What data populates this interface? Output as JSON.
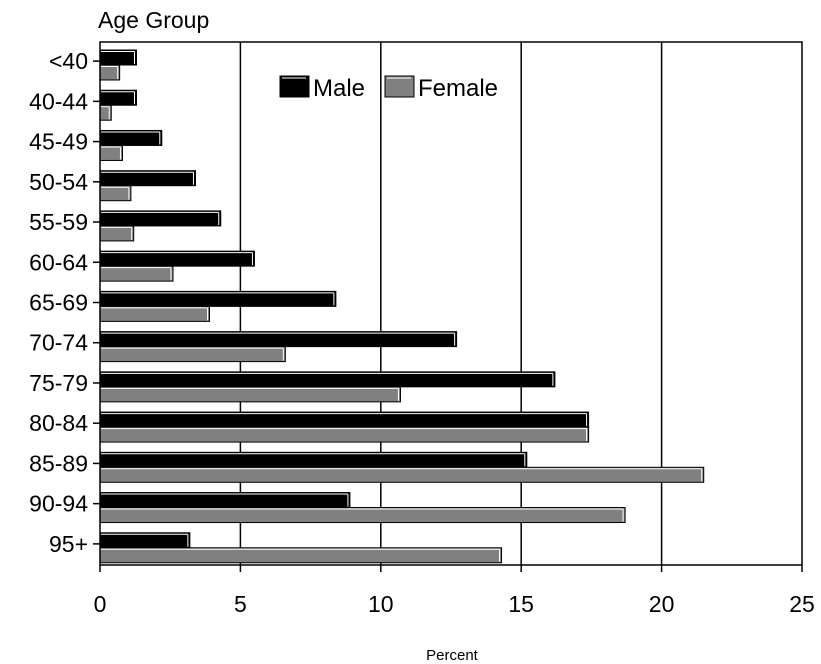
{
  "chart_data": {
    "type": "bar",
    "orientation": "horizontal",
    "title": "Age Group",
    "xlabel": "Percent",
    "ylabel": "",
    "xlim": [
      0,
      25
    ],
    "xticks": [
      0,
      5,
      10,
      15,
      20,
      25
    ],
    "grid": "vertical",
    "legend_position": "top-right",
    "categories": [
      "<40",
      "40-44",
      "45-49",
      "50-54",
      "55-59",
      "60-64",
      "65-69",
      "70-74",
      "75-79",
      "80-84",
      "85-89",
      "90-94",
      "95+"
    ],
    "series": [
      {
        "name": "Male",
        "color": "#000000",
        "values": [
          1.3,
          1.3,
          2.2,
          3.4,
          4.3,
          5.5,
          8.4,
          12.7,
          16.2,
          17.4,
          15.2,
          8.9,
          3.2
        ]
      },
      {
        "name": "Female",
        "color": "#808080",
        "values": [
          0.7,
          0.4,
          0.8,
          1.1,
          1.2,
          2.6,
          3.9,
          6.6,
          10.7,
          17.4,
          21.5,
          18.7,
          14.3
        ]
      }
    ]
  }
}
